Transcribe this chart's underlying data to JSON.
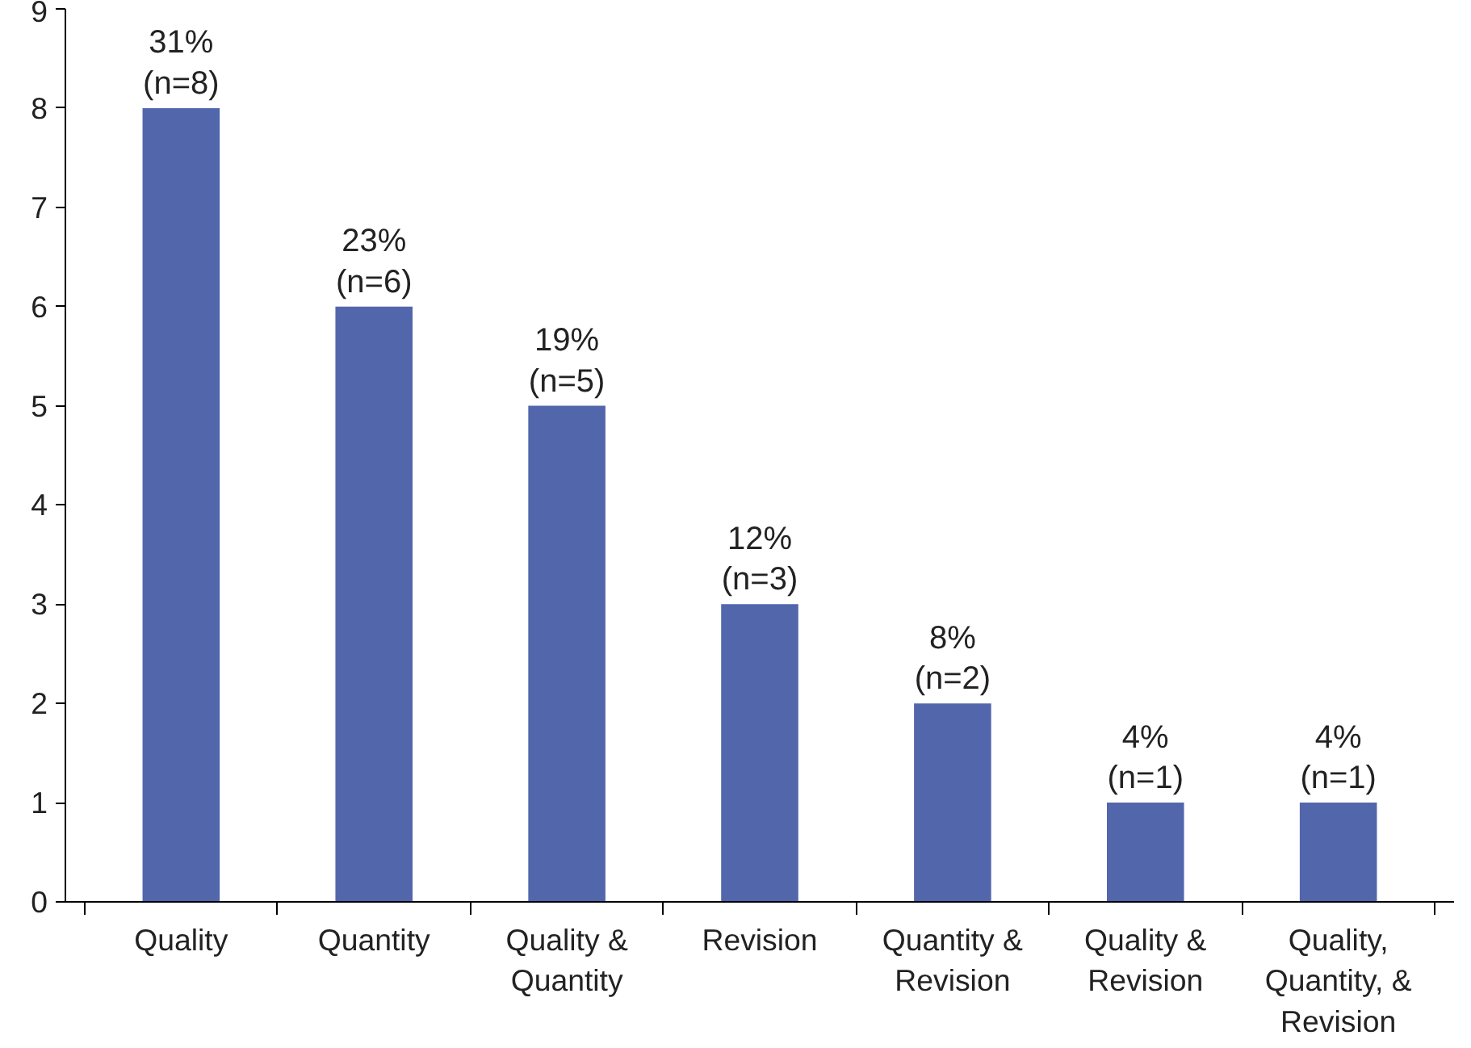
{
  "chart_data": {
    "type": "bar",
    "categories": [
      "Quality",
      "Quantity",
      "Quality &\nQuantity",
      "Revision",
      "Quantity &\nRevision",
      "Quality &\nRevision",
      "Quality,\nQuantity, &\nRevision"
    ],
    "values": [
      8,
      6,
      5,
      3,
      2,
      1,
      1
    ],
    "color": "#5266ab",
    "value_labels": [
      "31%\n(n=8)",
      "23%\n(n=6)",
      "19%\n(n=5)",
      "12%\n(n=3)",
      "8%\n(n=2)",
      "4%\n(n=1)",
      "4%\n(n=1)"
    ],
    "ylim": [
      0,
      9
    ],
    "yticks": [
      0,
      1,
      2,
      3,
      4,
      5,
      6,
      7,
      8,
      9
    ],
    "grid": false
  }
}
